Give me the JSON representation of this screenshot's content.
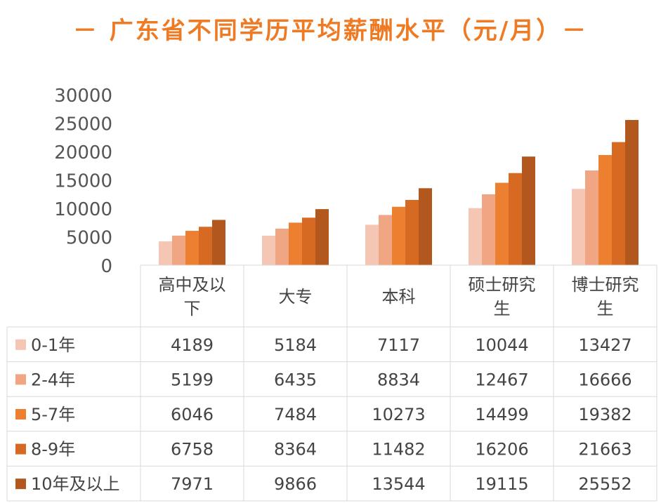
{
  "chart_data": {
    "type": "bar",
    "title": "－ 广东省不同学历平均薪酬水平（元/月）－",
    "categories": [
      [
        "高中及以",
        "下"
      ],
      [
        "大专"
      ],
      [
        "本科"
      ],
      [
        "硕士研究",
        "生"
      ],
      [
        "博士研究",
        "生"
      ]
    ],
    "category_names": [
      "高中及以下",
      "大专",
      "本科",
      "硕士研究生",
      "博士研究生"
    ],
    "ylim": [
      0,
      30000
    ],
    "yticks": [
      "30000",
      "25000",
      "20000",
      "15000",
      "10000",
      "5000",
      "0"
    ],
    "ytick_values": [
      30000,
      25000,
      20000,
      15000,
      10000,
      5000,
      0
    ],
    "legend_placement": "data-table",
    "grid": false,
    "series": [
      {
        "name": "0-1年",
        "color": "#F5C6B4",
        "values": [
          4189,
          5184,
          7117,
          10044,
          13427
        ]
      },
      {
        "name": "2-4年",
        "color": "#F0A583",
        "values": [
          5199,
          6435,
          8834,
          12467,
          16666
        ]
      },
      {
        "name": "5-7年",
        "color": "#EC8030",
        "values": [
          6046,
          7484,
          10273,
          14499,
          19382
        ]
      },
      {
        "name": "8-9年",
        "color": "#D76A22",
        "values": [
          6758,
          8364,
          11482,
          16206,
          21663
        ]
      },
      {
        "name": "10年及以上",
        "color": "#B2581E",
        "values": [
          7971,
          9866,
          13544,
          19115,
          25552
        ]
      }
    ]
  }
}
